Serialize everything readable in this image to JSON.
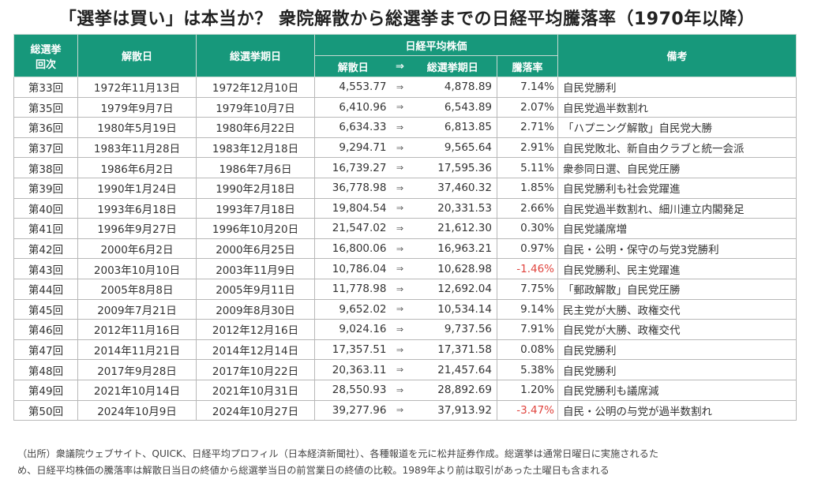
{
  "title": "「選挙は買い」は本当か？ 衆院解散から総選挙までの日経平均騰落率（1970年以降）",
  "headers": {
    "election_no": "総選挙回次",
    "election_no_line1": "総選挙",
    "election_no_line2": "回次",
    "dissolution_date": "解散日",
    "election_date": "総選挙期日",
    "nikkei_group": "日経平均株価",
    "nikkei_dissolution": "解散日",
    "arrow": "⇒",
    "nikkei_election": "総選挙期日",
    "change": "騰落率",
    "remarks": "備考"
  },
  "colors": {
    "header_bg": "#17987b",
    "negative": "#e0443e"
  },
  "rows": [
    {
      "no": "第33回",
      "dissolution": "1972年11月13日",
      "election": "1972年12月10日",
      "v1": "4,553.77",
      "v2": "4,878.89",
      "change": "7.14%",
      "note": "自民党勝利"
    },
    {
      "no": "第35回",
      "dissolution": "1979年9月7日",
      "election": "1979年10月7日",
      "v1": "6,410.96",
      "v2": "6,543.89",
      "change": "2.07%",
      "note": "自民党過半数割れ"
    },
    {
      "no": "第36回",
      "dissolution": "1980年5月19日",
      "election": "1980年6月22日",
      "v1": "6,634.33",
      "v2": "6,813.85",
      "change": "2.71%",
      "note": "「ハプニング解散」自民党大勝"
    },
    {
      "no": "第37回",
      "dissolution": "1983年11月28日",
      "election": "1983年12月18日",
      "v1": "9,294.71",
      "v2": "9,565.64",
      "change": "2.91%",
      "note": "自民党敗北、新自由クラブと統一会派"
    },
    {
      "no": "第38回",
      "dissolution": "1986年6月2日",
      "election": "1986年7月6日",
      "v1": "16,739.27",
      "v2": "17,595.36",
      "change": "5.11%",
      "note": "衆参同日選、自民党圧勝"
    },
    {
      "no": "第39回",
      "dissolution": "1990年1月24日",
      "election": "1990年2月18日",
      "v1": "36,778.98",
      "v2": "37,460.32",
      "change": "1.85%",
      "note": "自民党勝利も社会党躍進"
    },
    {
      "no": "第40回",
      "dissolution": "1993年6月18日",
      "election": "1993年7月18日",
      "v1": "19,804.54",
      "v2": "20,331.53",
      "change": "2.66%",
      "note": "自民党過半数割れ、細川連立内閣発足"
    },
    {
      "no": "第41回",
      "dissolution": "1996年9月27日",
      "election": "1996年10月20日",
      "v1": "21,547.02",
      "v2": "21,612.30",
      "change": "0.30%",
      "note": "自民党議席増"
    },
    {
      "no": "第42回",
      "dissolution": "2000年6月2日",
      "election": "2000年6月25日",
      "v1": "16,800.06",
      "v2": "16,963.21",
      "change": "0.97%",
      "note": "自民・公明・保守の与党3党勝利"
    },
    {
      "no": "第43回",
      "dissolution": "2003年10月10日",
      "election": "2003年11月9日",
      "v1": "10,786.04",
      "v2": "10,628.98",
      "change": "-1.46%",
      "note": "自民党勝利、民主党躍進"
    },
    {
      "no": "第44回",
      "dissolution": "2005年8月8日",
      "election": "2005年9月11日",
      "v1": "11,778.98",
      "v2": "12,692.04",
      "change": "7.75%",
      "note": "「郵政解散」自民党圧勝"
    },
    {
      "no": "第45回",
      "dissolution": "2009年7月21日",
      "election": "2009年8月30日",
      "v1": "9,652.02",
      "v2": "10,534.14",
      "change": "9.14%",
      "note": "民主党が大勝、政権交代"
    },
    {
      "no": "第46回",
      "dissolution": "2012年11月16日",
      "election": "2012年12月16日",
      "v1": "9,024.16",
      "v2": "9,737.56",
      "change": "7.91%",
      "note": "自民党が大勝、政権交代"
    },
    {
      "no": "第47回",
      "dissolution": "2014年11月21日",
      "election": "2014年12月14日",
      "v1": "17,357.51",
      "v2": "17,371.58",
      "change": "0.08%",
      "note": "自民党勝利"
    },
    {
      "no": "第48回",
      "dissolution": "2017年9月28日",
      "election": "2017年10月22日",
      "v1": "20,363.11",
      "v2": "21,457.64",
      "change": "5.38%",
      "note": "自民党勝利"
    },
    {
      "no": "第49回",
      "dissolution": "2021年10月14日",
      "election": "2021年10月31日",
      "v1": "28,550.93",
      "v2": "28,892.69",
      "change": "1.20%",
      "note": "自民党勝利も議席減"
    },
    {
      "no": "第50回",
      "dissolution": "2024年10月9日",
      "election": "2024年10月27日",
      "v1": "39,277.96",
      "v2": "37,913.92",
      "change": "-3.47%",
      "note": "自民・公明の与党が過半数割れ"
    }
  ],
  "footnote": {
    "line1": "（出所）衆議院ウェブサイト、QUICK、日経平均プロフィル（日本経済新聞社）、各種報道を元に松井証券作成。総選挙は通常日曜日に実施されるた",
    "line2": "め、日経平均株価の騰落率は解散日当日の終値から総選挙当日の前営業日の終値の比較。1989年より前は取引があった土曜日も含まれる"
  }
}
